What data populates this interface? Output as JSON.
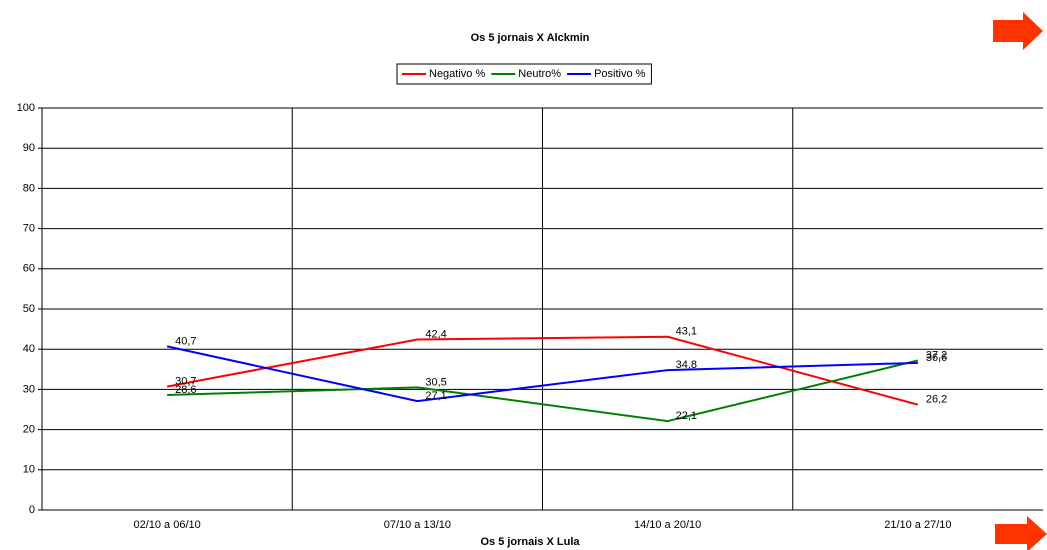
{
  "chart_data": {
    "type": "line",
    "title": "Os 5 jornais X Alckmin",
    "x_label": "Os 5 jornais X Lula",
    "categories": [
      "02/10 a 06/10",
      "07/10 a 13/10",
      "14/10 a 20/10",
      "21/10 a 27/10"
    ],
    "series": [
      {
        "name": "Negativo %",
        "color": "#ff0000",
        "values": [
          30.7,
          42.4,
          43.1,
          26.2
        ],
        "value_labels": [
          "30,7",
          "42,4",
          "43,1",
          "26,2"
        ]
      },
      {
        "name": "Neutro%",
        "color": "#008000",
        "values": [
          28.6,
          30.5,
          22.1,
          37.2
        ],
        "value_labels": [
          "28,6",
          "30,5",
          "22,1",
          "37,2"
        ]
      },
      {
        "name": "Positivo %",
        "color": "#0000ff",
        "values": [
          40.7,
          27.1,
          34.8,
          36.6
        ],
        "value_labels": [
          "40,7",
          "27,1",
          "34,8",
          "36,6"
        ]
      }
    ],
    "ylim": [
      0,
      100
    ],
    "yticks": [
      0,
      10,
      20,
      30,
      40,
      50,
      60,
      70,
      80,
      90,
      100
    ],
    "grid": true,
    "legend": "top"
  }
}
